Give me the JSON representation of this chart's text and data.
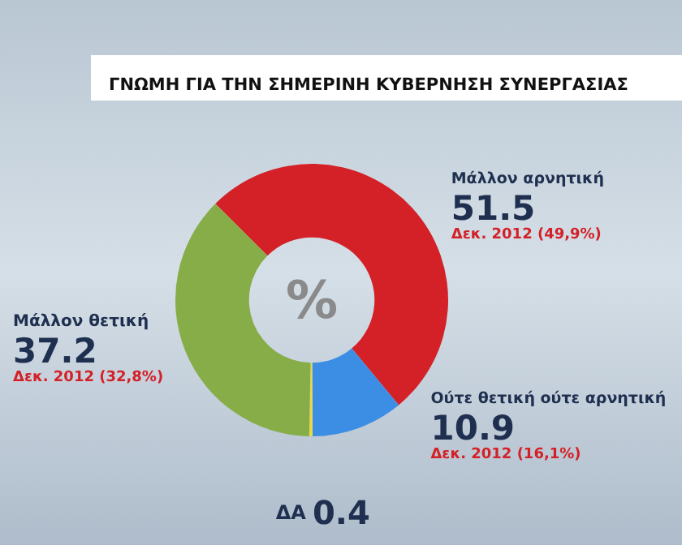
{
  "chart_data": {
    "type": "donut",
    "title": "ΓΝΩΜΗ ΓΙΑ ΤΗΝ ΣΗΜΕΡΙΝΗ ΚΥΒΕΡΝΗΣΗ ΣΥΝΕΡΓΑΣΙΑΣ",
    "categories": [
      "Μάλλον αρνητική",
      "Ούτε θετική ούτε αρνητική",
      "ΔΑ",
      "Μάλλον θετική"
    ],
    "values": [
      51.5,
      10.9,
      0.4,
      37.2
    ],
    "colors": [
      "#d42027",
      "#3b8ee4",
      "#e8d84a",
      "#86ad48"
    ],
    "data_labels": true,
    "legend": false,
    "annotations": [
      "%",
      {
        "text": "Δεκ. 2012 (49,9%)",
        "x": "Μάλλον αρνητική"
      },
      {
        "text": "Δεκ. 2012 (16,1%)",
        "x": "Ούτε θετική ούτε αρνητική"
      },
      {
        "text": "Δεκ. 2012 (32,8%)",
        "x": "Μάλλον θετική"
      }
    ]
  }
}
